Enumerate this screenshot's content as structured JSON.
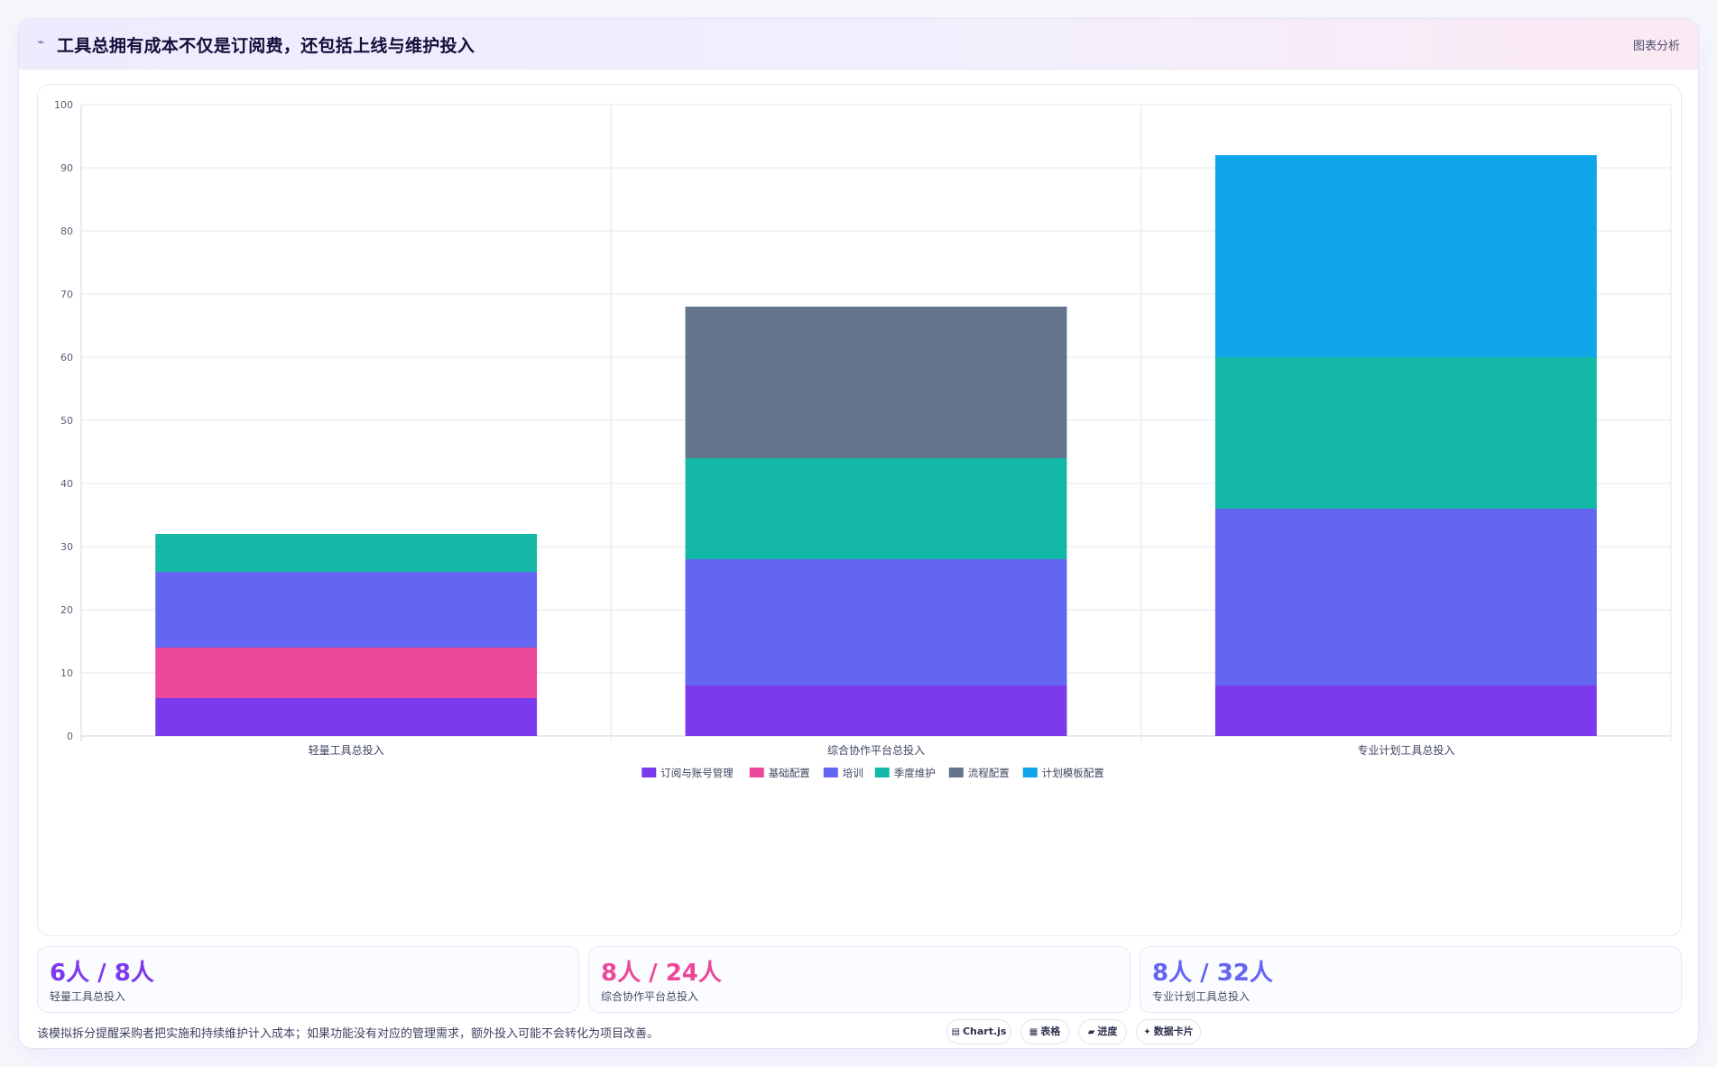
{
  "header": {
    "icon": "sparkle-icon",
    "title": "工具总拥有成本不仅是订阅费，还包括上线与维护投入",
    "tag": "图表分析"
  },
  "chart_data": {
    "type": "bar",
    "stacked": true,
    "categories": [
      "轻量工具总投入",
      "综合协作平台总投入",
      "专业计划工具总投入"
    ],
    "series": [
      {
        "name": "订阅与账号管理",
        "color": "#7c3aed",
        "values": [
          6,
          8,
          8
        ]
      },
      {
        "name": "基础配置",
        "color": "#ec4899",
        "values": [
          8,
          0,
          0
        ]
      },
      {
        "name": "培训",
        "color": "#6366f1",
        "values": [
          12,
          20,
          28
        ]
      },
      {
        "name": "季度维护",
        "color": "#14b8a6",
        "values": [
          6,
          16,
          24
        ]
      },
      {
        "name": "流程配置",
        "color": "#64748b",
        "values": [
          0,
          24,
          0
        ]
      },
      {
        "name": "计划模板配置",
        "color": "#0ea5e9",
        "values": [
          0,
          0,
          32
        ]
      }
    ],
    "ylim": [
      0,
      100
    ],
    "yticks": [
      0,
      10,
      20,
      30,
      40,
      50,
      60,
      70,
      80,
      90,
      100
    ],
    "grid": true,
    "legend": "bottom-center"
  },
  "stats": [
    {
      "value": "6人 / 8人",
      "label": "轻量工具总投入",
      "color": "#7c3aed"
    },
    {
      "value": "8人 / 24人",
      "label": "综合协作平台总投入",
      "color": "#ec4899"
    },
    {
      "value": "8人 / 32人",
      "label": "专业计划工具总投入",
      "color": "#6366f1"
    }
  ],
  "footer": {
    "note": "该模拟拆分提醒采购者把实施和持续维护计入成本；如果功能没有对应的管理需求，额外投入可能不会转化为项目改善。",
    "pills": [
      {
        "icon": "chart-icon",
        "glyph": "▤",
        "label": "Chart.js"
      },
      {
        "icon": "table-icon",
        "glyph": "▦",
        "label": "表格"
      },
      {
        "icon": "progress-icon",
        "glyph": "▰",
        "label": "进度"
      },
      {
        "icon": "card-icon",
        "glyph": "✦",
        "label": "数据卡片"
      }
    ]
  }
}
